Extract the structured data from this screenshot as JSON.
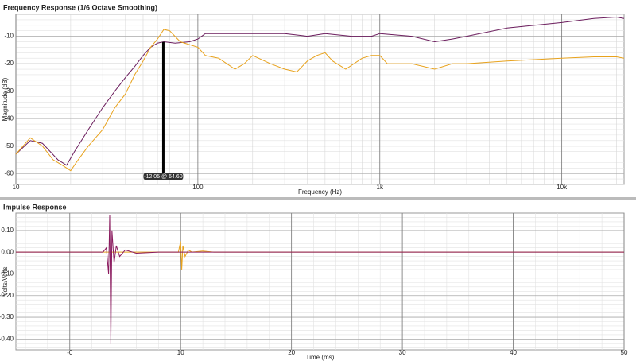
{
  "chart_data": [
    {
      "type": "line",
      "title": "Frequency Response (1/6 Octave Smoothing)",
      "x_label": "Frequency (Hz)",
      "y_label": "Magnitude (dB)",
      "xscale": "log",
      "xlim": [
        10,
        22000
      ],
      "ylim": [
        -64,
        -2
      ],
      "grid": true,
      "minor_grid": true,
      "xticks": [
        10,
        100,
        {
          "value": 1000,
          "label": "1k"
        },
        {
          "value": 10000,
          "label": "10k"
        }
      ],
      "yticks": [
        -10,
        -20,
        -30,
        -40,
        -50,
        -60
      ],
      "annotation": {
        "text": "-12.05 @ 64.60",
        "x": 64.6,
        "y": -12.05
      },
      "series": [
        {
          "color": "#6a1b5c",
          "x": [
            10,
            12,
            14,
            17,
            19,
            21,
            25,
            30,
            35,
            40,
            45,
            50,
            55,
            60,
            65,
            75,
            90,
            100,
            110,
            130,
            200,
            300,
            400,
            500,
            700,
            900,
            1000,
            1500,
            2000,
            2500,
            3000,
            5000,
            10000,
            15000,
            20000,
            22000
          ],
          "values": [
            -53,
            -48,
            -49,
            -55,
            -57,
            -52,
            -44,
            -36,
            -30,
            -25,
            -21,
            -17,
            -14,
            -12.5,
            -12,
            -12.5,
            -12,
            -11,
            -9,
            -9,
            -9,
            -9,
            -10,
            -9,
            -10,
            -10,
            -9,
            -10,
            -12,
            -11,
            -10,
            -7,
            -5,
            -3.5,
            -3,
            -3.5
          ]
        },
        {
          "color": "#e8a21c",
          "x": [
            10,
            12,
            14,
            16,
            18,
            20,
            22,
            25,
            30,
            35,
            40,
            45,
            50,
            55,
            60,
            65,
            70,
            80,
            100,
            110,
            130,
            160,
            180,
            200,
            250,
            300,
            350,
            400,
            450,
            500,
            550,
            650,
            800,
            900,
            1000,
            1100,
            1500,
            2000,
            2500,
            3000,
            5000,
            10000,
            15000,
            20000,
            22000
          ],
          "values": [
            -53,
            -47,
            -50,
            -55,
            -57,
            -59,
            -55,
            -50,
            -44,
            -36,
            -31,
            -24,
            -19,
            -14,
            -11,
            -7.5,
            -8,
            -12,
            -14,
            -17,
            -18,
            -22,
            -20,
            -17,
            -20,
            -22,
            -23,
            -19,
            -17,
            -16,
            -19,
            -22,
            -18,
            -17,
            -17,
            -20,
            -20,
            -22,
            -20,
            -20,
            -19,
            -18,
            -17.5,
            -17.5,
            -18
          ]
        }
      ]
    },
    {
      "type": "line",
      "title": "Impulse Response",
      "x_label": "Time (ms)",
      "y_label": "Volts/Volts",
      "xlim": [
        -4.86,
        50
      ],
      "ylim": [
        -0.45,
        0.18
      ],
      "grid": true,
      "minor_grid": true,
      "xticks": [
        {
          "value": 0,
          "label": "-0"
        },
        10,
        20,
        30,
        40,
        50
      ],
      "yticks": [
        {
          "value": 0.1,
          "label": "0.10"
        },
        {
          "value": 0,
          "label": "0.00"
        },
        {
          "value": -0.1,
          "label": "-0.10"
        },
        {
          "value": -0.2,
          "label": "-0.20"
        },
        {
          "value": -0.3,
          "label": "-0.30"
        },
        {
          "value": -0.4,
          "label": "-0.40"
        }
      ],
      "series": [
        {
          "color": "#e8a21c",
          "x": [
            -4.86,
            9.8,
            10,
            10.1,
            10.2,
            10.4,
            10.7,
            11,
            12,
            13,
            50
          ],
          "values": [
            0,
            0,
            0.05,
            -0.08,
            0.03,
            -0.02,
            0.01,
            0,
            0.005,
            0,
            0
          ]
        },
        {
          "color": "#8a1a5e",
          "x": [
            -4.86,
            3,
            3.3,
            3.5,
            3.6,
            3.7,
            3.8,
            4,
            4.2,
            4.5,
            5,
            6,
            8,
            50
          ],
          "values": [
            0,
            0,
            0.02,
            -0.1,
            0.17,
            -0.42,
            0.1,
            -0.05,
            0.03,
            -0.02,
            0.01,
            -0.005,
            0,
            0
          ]
        }
      ]
    }
  ]
}
